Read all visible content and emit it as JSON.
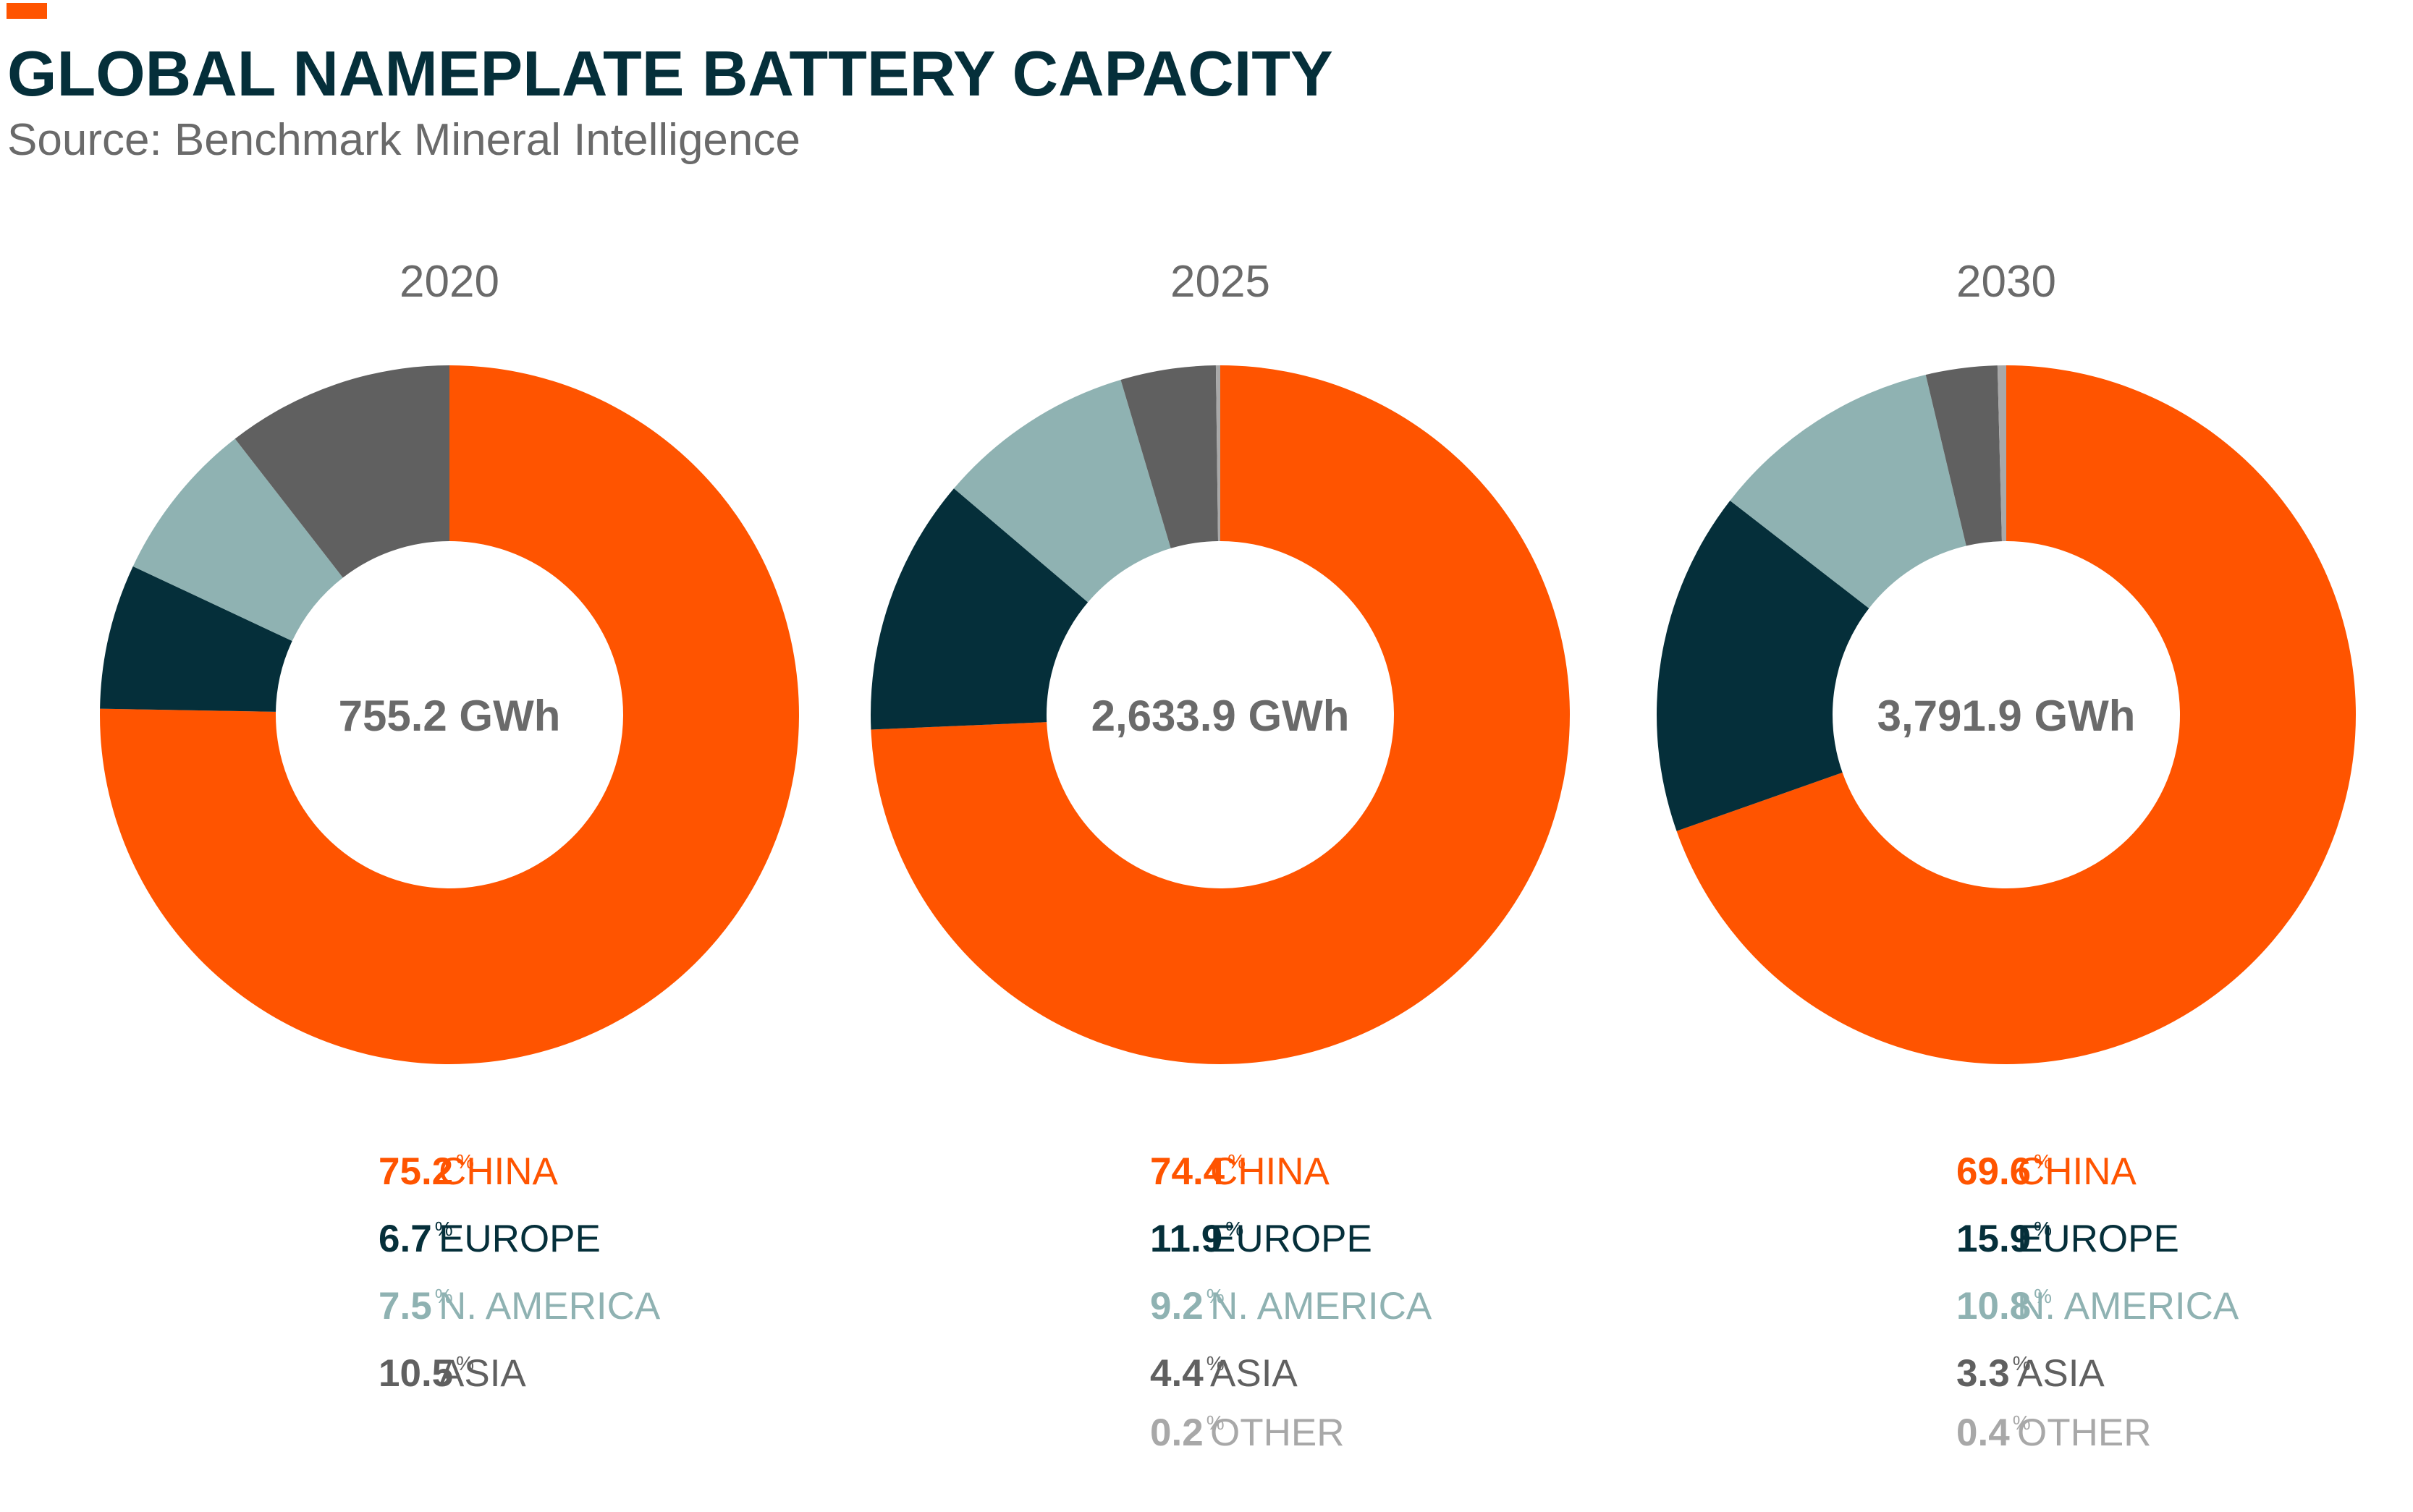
{
  "header": {
    "title": "GLOBAL NAMEPLATE BATTERY CAPACITY",
    "subtitle": "Source: Benchmark Mineral Intelligence",
    "accent_color": "#ff5400"
  },
  "colors": {
    "CHINA": "#ff5400",
    "EUROPE": "#052f3a",
    "N. AMERICA": "#8fb2b2",
    "ASIA": "#606060",
    "OTHER": "#a8a8a8",
    "center_label": "#6a6a6a",
    "year_label": "#6a6a6a"
  },
  "chart_data": [
    {
      "type": "pie",
      "style": "donut",
      "year": "2020",
      "total_label": "755.2 GWh",
      "unit": "%",
      "series": [
        {
          "name": "CHINA",
          "value": 75.2,
          "label": "75.2"
        },
        {
          "name": "EUROPE",
          "value": 6.7,
          "label": "6.7"
        },
        {
          "name": "N. AMERICA",
          "value": 7.5,
          "label": "7.5"
        },
        {
          "name": "ASIA",
          "value": 10.5,
          "label": "10.5"
        }
      ]
    },
    {
      "type": "pie",
      "style": "donut",
      "year": "2025",
      "total_label": "2,633.9 GWh",
      "unit": "%",
      "series": [
        {
          "name": "CHINA",
          "value": 74.4,
          "label": "74.4"
        },
        {
          "name": "EUROPE",
          "value": 11.9,
          "label": "11.9"
        },
        {
          "name": "N. AMERICA",
          "value": 9.2,
          "label": "9.2"
        },
        {
          "name": "ASIA",
          "value": 4.4,
          "label": "4.4"
        },
        {
          "name": "OTHER",
          "value": 0.2,
          "label": "0.2"
        }
      ]
    },
    {
      "type": "pie",
      "style": "donut",
      "year": "2030",
      "total_label": "3,791.9 GWh",
      "unit": "%",
      "series": [
        {
          "name": "CHINA",
          "value": 69.6,
          "label": "69.6"
        },
        {
          "name": "EUROPE",
          "value": 15.9,
          "label": "15.9"
        },
        {
          "name": "N. AMERICA",
          "value": 10.8,
          "label": "10.8"
        },
        {
          "name": "ASIA",
          "value": 3.3,
          "label": "3.3"
        },
        {
          "name": "OTHER",
          "value": 0.4,
          "label": "0.4"
        }
      ]
    }
  ]
}
